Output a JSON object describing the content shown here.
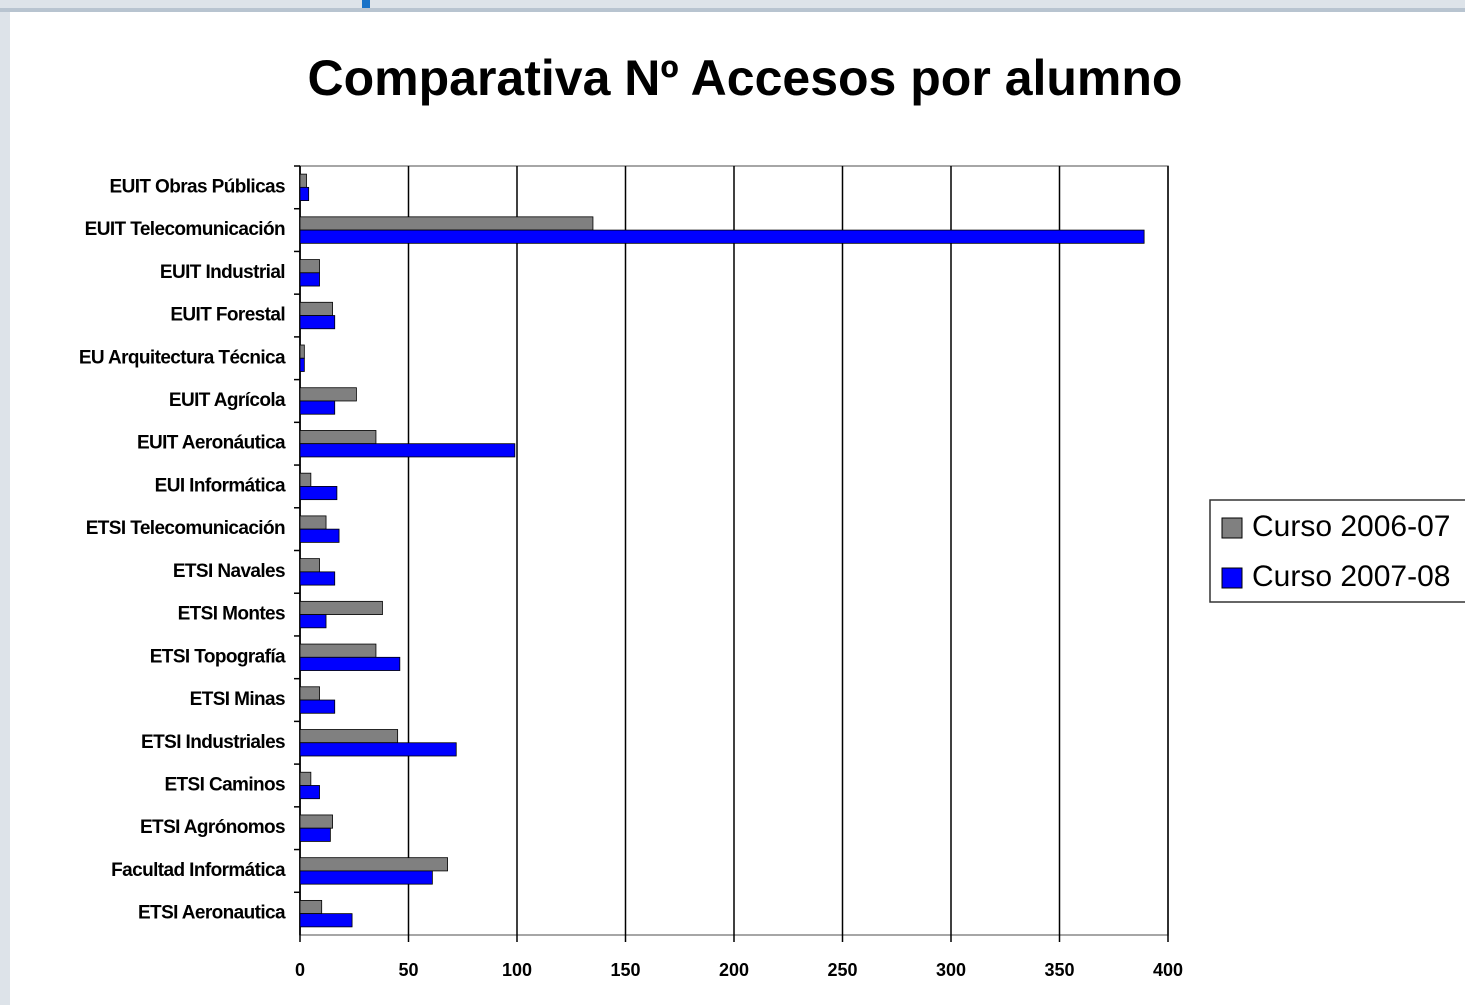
{
  "chart_data": {
    "type": "bar",
    "orientation": "horizontal",
    "title": "Comparativa Nº Accesos por alumno",
    "categories": [
      "EUIT Obras Públicas",
      "EUIT Telecomunicación",
      "EUIT Industrial",
      "EUIT Forestal",
      "EU Arquitectura Técnica",
      "EUIT Agrícola",
      "EUIT Aeronáutica",
      "EUI Informática",
      "ETSI Telecomunicación",
      "ETSI Navales",
      "ETSI Montes",
      "ETSI Topografía",
      "ETSI Minas",
      "ETSI Industriales",
      "ETSI Caminos",
      "ETSI Agrónomos",
      "Facultad Informática",
      "ETSI Aeronautica"
    ],
    "series": [
      {
        "name": "Curso 2006-07",
        "color": "#808080",
        "values": [
          3,
          135,
          9,
          15,
          2,
          26,
          35,
          5,
          12,
          9,
          38,
          35,
          9,
          45,
          5,
          15,
          68,
          10
        ]
      },
      {
        "name": "Curso 2007-08",
        "color": "#0000ff",
        "values": [
          4,
          389,
          9,
          16,
          2,
          16,
          99,
          17,
          18,
          16,
          12,
          46,
          16,
          72,
          9,
          14,
          61,
          24
        ]
      }
    ],
    "xlim": [
      0,
      400
    ],
    "xticks": [
      0,
      50,
      100,
      150,
      200,
      250,
      300,
      350,
      400
    ],
    "grid": true,
    "legend": "right"
  }
}
